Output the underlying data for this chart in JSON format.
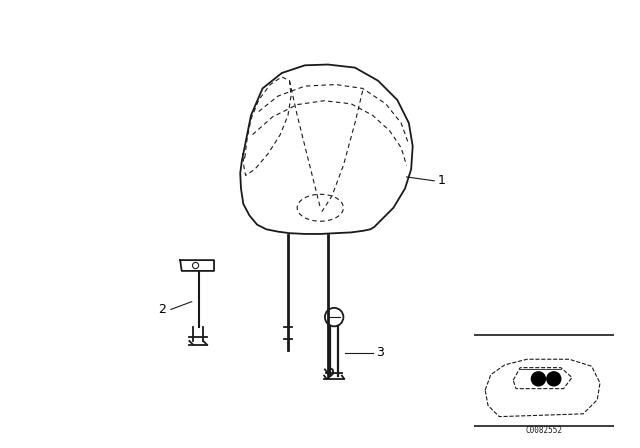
{
  "bg_color": "#ffffff",
  "line_color": "#1a1a1a",
  "label_color": "#000000",
  "part_labels": [
    "1",
    "2",
    "3"
  ],
  "code_text": "C0082552",
  "fig_width": 6.4,
  "fig_height": 4.48,
  "dpi": 100
}
